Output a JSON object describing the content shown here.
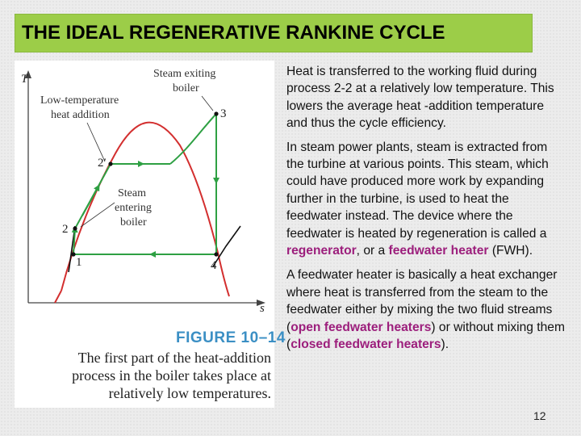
{
  "slide": {
    "title": "THE IDEAL REGENERATIVE RANKINE CYCLE",
    "page_number": "12"
  },
  "figure": {
    "axis_y": "T",
    "axis_x": "s",
    "labels": {
      "steam_exiting_1": "Steam exiting",
      "steam_exiting_2": "boiler",
      "low_temp_1": "Low-temperature",
      "low_temp_2": "heat addition",
      "steam_entering_1": "Steam",
      "steam_entering_2": "entering",
      "steam_entering_3": "boiler"
    },
    "states": {
      "s1": "1",
      "s2": "2",
      "s2p": "2′",
      "s3": "3",
      "s4": "4"
    },
    "number": "FIGURE 10–14",
    "caption": "The first part of the heat-addition process in the boiler takes place at relatively low temperatures.",
    "colors": {
      "dome": "#d32f2f",
      "cycle": "#2ea043",
      "figure_number": "#3b8fc4"
    }
  },
  "paragraphs": {
    "p1": "Heat is transferred to the working fluid during process 2-2 at a relatively low temperature. This lowers the average heat -addition temperature and thus the cycle efficiency.",
    "p2_part1": "In steam power plants, steam is extracted from the turbine at various points. This steam, which could have produced more work by expanding further in the turbine, is used to heat the feedwater instead. The device where the feedwater is heated by regeneration is called a ",
    "p2_term1": "regenerator",
    "p2_part2": ", or a ",
    "p2_term2": "feedwater heater",
    "p2_part3": " (FWH).",
    "p3_part1": "A feedwater heater is basically a heat exchanger where heat is transferred from the steam to the feedwater either by mixing the two fluid streams (",
    "p3_term1": "open feedwater heaters",
    "p3_part2": ") or without mixing them (",
    "p3_term2": "closed feedwater heaters",
    "p3_part3": ")."
  },
  "theme": {
    "title_bar": "#9ccd48",
    "highlight": "#9c1e7c"
  }
}
